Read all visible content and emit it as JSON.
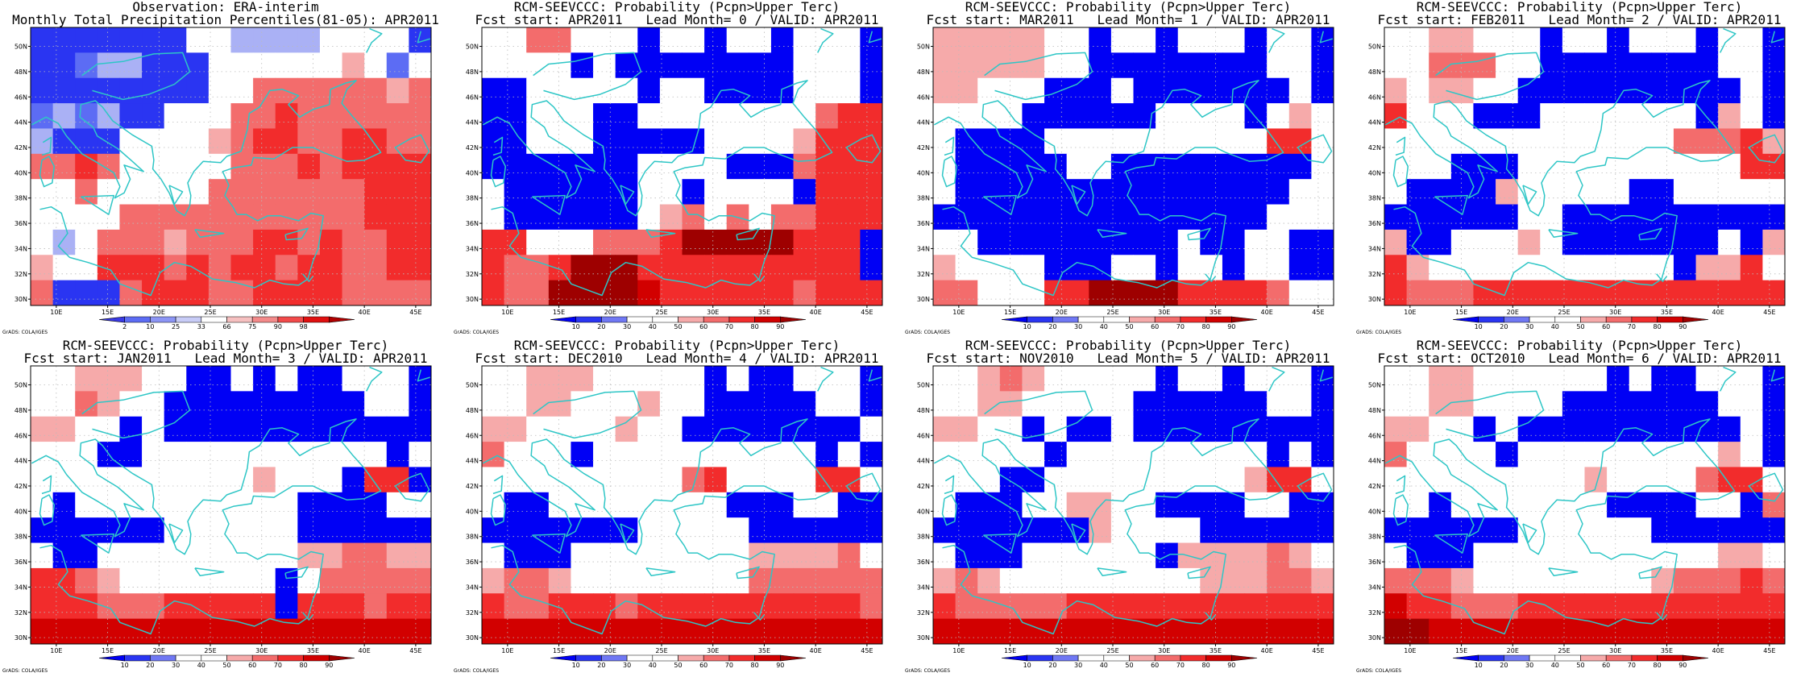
{
  "colors": {
    "coast": "#2ec6c6",
    "cell_palette": {
      "B3": "#0000f5",
      "B2": "#2a35f2",
      "B1": "#5c6cf4",
      "B0": "#aab1f5",
      "W": "#ffffff",
      "R0": "#f6aaaa",
      "R1": "#f36c6c",
      "R2": "#f22c2c",
      "R3": "#d20000",
      "R4": "#9e0000"
    },
    "obs_scale": [
      "#3a3ae6",
      "#5c6cf4",
      "#8c95f5",
      "#c8ccf7",
      "#ffffff",
      "#f6c0c0",
      "#f38a8a",
      "#f24a4a",
      "#e01010",
      "#b00000"
    ],
    "prob_scale": [
      "#0000f5",
      "#2a35f2",
      "#7078f4",
      "#ffffff",
      "#ffffff",
      "#f6aaaa",
      "#f36c6c",
      "#f22c2c",
      "#d20000",
      "#9e0000"
    ]
  },
  "lat_ticks": [
    "50N",
    "48N",
    "46N",
    "44N",
    "42N",
    "40N",
    "38N",
    "36N",
    "34N",
    "32N",
    "30N"
  ],
  "lon_ticks": [
    "10E",
    "15E",
    "20E",
    "25E",
    "30E",
    "35E",
    "40E",
    "45E"
  ],
  "credit": "GrADS: COLA/IGES",
  "panels": [
    {
      "id": "obs",
      "title1": "Observation: ERA-interim",
      "title2": "Monthly Total Precipitation Percentiles(81-05): APR2011",
      "scale": "obs",
      "colorbar_labels": [
        "2",
        "10",
        "25",
        "33",
        "66",
        "75",
        "90",
        "98"
      ],
      "rows": [
        "B2,B2,B2,B2,B2,B2,B2,W,W,B0,B0,B0,B0,W,W,W,W,B2",
        "B2,B2,B1,B0,B0,B2,B2,B2,W,W,W,W,W,W,R0,W,B1,W",
        "B2,B2,B2,B2,B2,B2,B2,B2,W,W,R1,R1,R1,R1,R1,R1,R0,R1",
        "B1,B0,B1,B0,B2,B2,W,W,W,R1,R1,R2,R1,R1,R1,R1,R1,R1",
        "B0,B2,B2,B2,W,W,W,W,R0,R1,R2,R2,R1,R1,R2,R2,R1,R1",
        "R1,R1,R2,R1,W,W,W,W,W,R1,R1,R1,R2,R1,R2,R2,R2,R2",
        "W,W,R1,W,W,W,W,W,R1,R1,R1,R1,R1,R1,R1,R2,R2,R2",
        "W,W,W,W,R1,R1,R1,R1,R1,R1,R1,R1,R1,R1,R1,R2,R2,R2",
        "W,B0,W,R1,R1,R1,R0,R1,R1,R1,R2,R2,R1,R2,R1,R1,R2,R2",
        "R0,W,W,R2,R2,R2,R1,R2,R1,R2,R2,R1,R2,R2,R1,R1,R2,R2",
        "R1,B2,B2,B2,R1,R2,R2,R2,R1,R1,R2,R2,R2,R2,R1,R1,R1,R1"
      ]
    },
    {
      "id": "lead0",
      "title1": "RCM-SEEVCCC: Probability (Pcpn>Upper Terc)",
      "title2": "Fcst start: APR2011   Lead Month= 0 / VALID: APR2011",
      "scale": "prob",
      "colorbar_labels": [
        "10",
        "20",
        "30",
        "40",
        "50",
        "60",
        "70",
        "80",
        "90"
      ],
      "rows": [
        "W,W,R1,R1,W,W,W,B3,W,W,B3,W,W,B3,W,W,W,B3",
        "W,W,W,W,B3,W,B3,B3,B3,B3,B3,B3,B3,B3,W,W,W,B3",
        "B3,B3,W,W,W,W,W,B3,W,W,B3,B3,B3,B3,W,W,W,B3",
        "B3,B3,W,W,W,B3,B3,W,W,W,W,W,W,W,W,R1,R2,R2",
        "B3,B3,W,W,W,B3,B3,B3,B3,B3,W,W,W,W,R0,R2,R2,R2",
        "B3,B3,B3,B3,B3,B3,B3,W,W,W,W,B3,B3,B3,R1,R2,R2,R2",
        "W,B3,B3,B3,B3,B3,B3,W,W,B3,W,W,W,W,B3,R2,R2,R2",
        "W,B3,B3,B3,B3,B3,B3,W,R0,R1,W,R1,W,R1,R1,R2,R2,R2",
        "R2,R2,W,W,W,R1,R1,R1,R2,R4,R4,R4,R4,R4,R2,R2,R2,B3",
        "R2,R1,R1,R2,R4,R4,R4,R2,R2,R2,R2,R2,R2,R2,R2,R2,R2,B3",
        "R2,R1,R1,R4,R4,R4,R4,R3,R2,R2,R2,R2,R2,R2,R1,R2,R2,R2"
      ]
    },
    {
      "id": "lead1",
      "title1": "RCM-SEEVCCC: Probability (Pcpn>Upper Terc)",
      "title2": "Fcst start: MAR2011   Lead Month= 1 / VALID: APR2011",
      "scale": "prob",
      "colorbar_labels": [
        "10",
        "20",
        "30",
        "40",
        "50",
        "60",
        "70",
        "80",
        "90"
      ],
      "rows": [
        "R0,R0,R0,R0,R0,W,W,B3,W,W,B3,W,W,W,B3,W,W,B3",
        "R0,R0,R0,R0,R0,W,W,B3,B3,B3,B3,B3,B3,B3,B3,W,W,B3",
        "R0,R0,W,W,W,B3,B3,B3,W,B3,B3,B3,B3,B3,B3,B3,W,B3",
        "W,W,W,W,B3,B3,B3,B3,B3,B3,W,W,W,W,B3,W,R0,W",
        "W,B3,B3,B3,B3,W,W,W,W,W,W,W,W,W,W,R2,R2,W",
        "W,B3,B3,B3,B3,B3,W,W,B3,B3,B3,B3,B3,B3,B3,B3,B3,W",
        "W,B3,B3,B3,B3,B3,B3,B3,B3,B3,B3,B3,B3,B3,B3,B3,W,W",
        "B3,B3,B3,B3,B3,B3,B3,B3,B3,B3,B3,B3,B3,B3,B3,W,W,W",
        "W,W,B3,B3,B3,B3,B3,B3,B3,B3,B3,W,B3,B3,W,W,B3,B3",
        "R0,W,W,W,W,B3,B3,B3,W,W,B3,W,W,B3,W,W,B3,B3",
        "R1,R1,W,W,W,R2,R2,R4,R4,R4,R4,R2,R2,R2,R2,R1,W,W"
      ]
    },
    {
      "id": "lead2",
      "title1": "RCM-SEEVCCC: Probability (Pcpn>Upper Terc)",
      "title2": "Fcst start: FEB2011   Lead Month= 2 / VALID: APR2011",
      "scale": "prob",
      "colorbar_labels": [
        "10",
        "20",
        "30",
        "40",
        "50",
        "60",
        "70",
        "80",
        "90"
      ],
      "rows": [
        "W,W,R0,R0,W,W,W,B3,W,W,B3,W,W,W,B3,W,W,B3",
        "W,W,R1,R1,R1,W,W,B3,B3,B3,B3,B3,B3,B3,B3,W,W,B3",
        "R0,W,R0,R0,W,W,B3,B3,B3,B3,B3,B3,B3,B3,B3,B3,W,B3",
        "R2,W,W,W,B3,B3,B3,W,W,W,W,W,W,W,B3,R0,W,B3",
        "W,W,W,W,W,W,W,W,W,W,W,W,W,R1,R1,R1,R2,R0",
        "W,W,W,B3,B3,B3,W,W,W,W,W,W,W,W,W,W,R2,R2",
        "W,B3,B3,B3,B3,R0,W,W,W,W,W,B3,B3,W,W,W,W,W",
        "B3,B3,B3,B3,B3,B3,W,W,B3,B3,B3,B3,B3,B3,B3,B3,B3,B3",
        "R0,B3,B3,W,W,W,R0,W,B3,B3,B3,B3,B3,B3,B3,W,B3,R0",
        "R2,R0,W,W,W,W,W,W,W,W,W,W,W,B3,R0,R0,R2,W",
        "R2,R1,R1,R1,R2,R2,R2,R2,R2,R2,R2,R2,R2,R2,R2,R2,R2,R2"
      ]
    },
    {
      "id": "lead3",
      "title1": "RCM-SEEVCCC: Probability (Pcpn>Upper Terc)",
      "title2": "Fcst start: JAN2011   Lead Month= 3 / VALID: APR2011",
      "scale": "prob",
      "colorbar_labels": [
        "10",
        "20",
        "30",
        "40",
        "50",
        "60",
        "70",
        "80",
        "90"
      ],
      "rows": [
        "W,W,R0,R0,R0,W,W,B3,B3,W,B3,W,B3,B3,W,W,W,B3",
        "W,W,R1,R0,W,W,B3,B3,B3,B3,B3,B3,B3,B3,B3,W,W,B3",
        "R0,R0,W,W,B3,W,B3,B3,B3,B3,B3,B3,B3,B3,B3,B3,B3,B3",
        "W,W,W,B3,B3,W,W,W,W,W,W,W,W,W,W,W,B3,W",
        "W,W,W,W,W,W,W,W,W,W,R0,W,W,W,B3,R2,R2,B3",
        "W,B3,W,W,W,W,W,W,W,W,W,W,B3,B3,B3,B3,W,W",
        "B3,B3,B3,B3,B3,B3,W,W,W,W,W,W,B3,B3,B3,B3,B3,B3",
        "W,B3,B3,W,W,W,W,W,W,W,W,W,R0,R0,R1,R1,R0,R0",
        "R2,R2,R1,R0,W,W,W,W,W,W,W,B3,W,R1,R1,R1,R1,R1",
        "R2,R2,R2,R1,R1,R1,R2,R2,R2,R2,R2,B3,R2,R2,R2,R1,R2,R2",
        "R3,R3,R3,R3,R3,R3,R3,R3,R3,R3,R3,R3,R3,R3,R3,R3,R3,R3"
      ]
    },
    {
      "id": "lead4",
      "title1": "RCM-SEEVCCC: Probability (Pcpn>Upper Terc)",
      "title2": "Fcst start: DEC2010   Lead Month= 4 / VALID: APR2011",
      "scale": "prob",
      "colorbar_labels": [
        "10",
        "20",
        "30",
        "40",
        "50",
        "60",
        "70",
        "80",
        "90"
      ],
      "rows": [
        "W,W,R0,R0,R0,W,W,W,W,W,B3,W,B3,B3,W,W,W,B3",
        "W,W,R0,R0,W,W,W,R0,W,W,B3,B3,B3,B3,B3,W,W,B3",
        "R0,R0,W,W,W,W,R0,W,W,B3,B3,B3,B3,B3,B3,B3,B3,W",
        "R1,W,W,W,B3,W,W,W,W,W,W,W,W,W,W,B3,W,B3",
        "W,W,W,W,W,W,W,W,W,R1,R2,W,W,W,W,R2,R2,W",
        "W,B3,B3,W,W,W,W,W,W,W,W,B3,B3,B3,W,W,B3,B3",
        "B3,B3,B3,B3,B3,B3,B3,W,W,W,W,W,B3,B3,B3,B3,B3,B3",
        "W,B3,B3,B3,W,W,W,W,W,W,W,W,R0,R0,R0,R0,R1,W",
        "R0,R1,R1,R0,W,W,W,W,W,W,W,W,R1,R1,R1,R1,R1,R1",
        "R2,R1,R1,R2,R2,R2,R1,R2,R2,R2,R2,R2,R2,R2,R2,R2,R2,R1",
        "R3,R3,R3,R3,R3,R3,R3,R3,R3,R3,R3,R3,R3,R3,R3,R3,R3,R3"
      ]
    },
    {
      "id": "lead5",
      "title1": "RCM-SEEVCCC: Probability (Pcpn>Upper Terc)",
      "title2": "Fcst start: NOV2010   Lead Month= 5 / VALID: APR2011",
      "scale": "prob",
      "colorbar_labels": [
        "10",
        "20",
        "30",
        "40",
        "50",
        "60",
        "70",
        "80",
        "90"
      ],
      "rows": [
        "W,W,R0,R1,R0,W,W,W,W,W,B3,W,W,B3,W,W,W,B3",
        "W,W,R0,R0,W,W,W,W,W,B3,B3,B3,B3,B3,B3,W,W,B3",
        "R0,R0,W,W,B3,W,B3,B3,W,B3,B3,B3,B3,B3,B3,B3,B3,B3",
        "W,W,W,W,W,B3,W,W,W,W,W,W,W,W,W,B3,W,B3",
        "W,W,W,B3,B3,W,W,W,W,W,W,W,W,W,R0,R2,R2,W",
        "W,B3,B3,B3,W,W,R0,R0,W,W,B3,B3,B3,B3,W,W,B3,B3",
        "B3,B3,B3,B3,B3,B3,B3,R0,W,W,W,W,B3,B3,B3,B3,B3,B3",
        "W,B3,B3,B3,W,W,W,W,W,W,B3,R0,R0,R0,R0,R1,R0,W",
        "R0,R1,R0,W,W,W,W,W,W,W,W,W,R0,R0,R0,R1,R1,R0",
        "R2,R1,R1,R1,R1,R1,R2,R2,R2,R2,R2,R2,R2,R2,R2,R2,R2,R2",
        "R3,R3,R3,R3,R3,R3,R3,R3,R3,R3,R3,R3,R3,R3,R3,R3,R3,R3"
      ]
    },
    {
      "id": "lead6",
      "title1": "RCM-SEEVCCC: Probability (Pcpn>Upper Terc)",
      "title2": "Fcst start: OCT2010   Lead Month= 6 / VALID: APR2011",
      "scale": "prob",
      "colorbar_labels": [
        "10",
        "20",
        "30",
        "40",
        "50",
        "60",
        "70",
        "80",
        "90"
      ],
      "rows": [
        "W,W,R0,R0,W,W,W,W,W,W,B3,W,B3,B3,W,W,W,B3",
        "W,W,R0,R0,W,W,W,W,B3,B3,B3,B3,B3,B3,B3,W,W,B3",
        "R0,R0,W,W,B3,W,B3,B3,B3,B3,B3,B3,B3,B3,B3,B3,W,B3",
        "R1,W,W,W,W,B3,W,W,W,W,W,W,W,W,W,R0,W,B3",
        "W,W,W,W,W,W,W,W,W,R0,W,W,W,W,R1,R2,R2,W",
        "W,W,B3,W,W,W,W,W,W,W,B3,B3,B3,B3,W,W,B3,R1",
        "B3,B3,B3,B3,B3,B3,W,W,W,W,W,W,B3,B3,B3,B3,B3,B3",
        "W,B3,B3,B3,W,W,W,W,W,W,W,W,W,W,W,R0,R0,W",
        "R1,R1,R1,R0,W,W,W,W,W,W,W,W,R0,R1,R1,R1,R2,R1",
        "R3,R2,R2,R1,R1,R1,R2,R2,R2,R2,R2,R2,R2,R2,R2,R2,R2,R2",
        "R4,R4,R3,R3,R3,R3,R3,R3,R3,R3,R3,R3,R3,R3,R3,R3,R3,R3"
      ]
    }
  ]
}
